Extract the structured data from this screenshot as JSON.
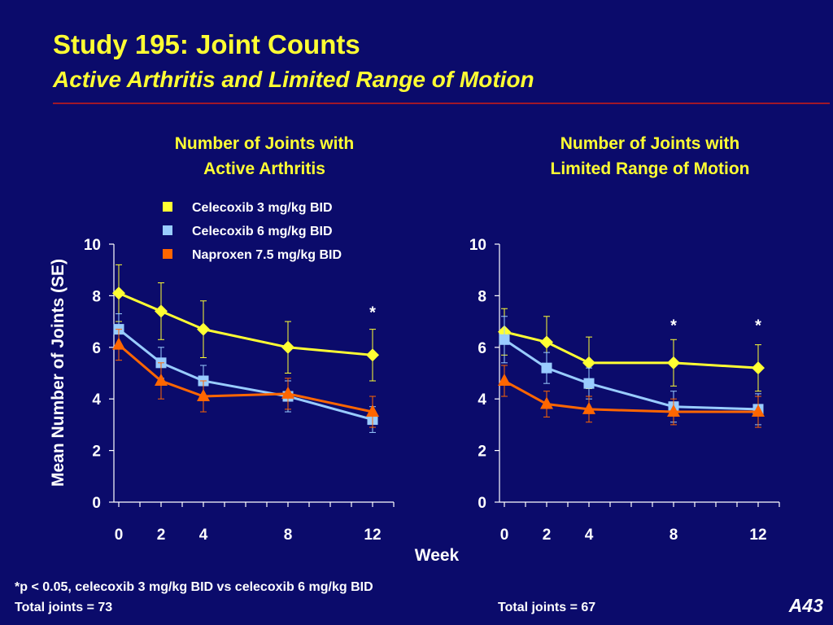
{
  "slide": {
    "title": "Study 195:  Joint Counts",
    "subtitle": "Active Arthritis and Limited Range of Motion",
    "footnote": "*p < 0.05, celecoxib 3 mg/kg BID vs celecoxib 6 mg/kg BID",
    "total_left": "Total joints = 73",
    "total_right": "Total joints = 67",
    "slide_number": "A43"
  },
  "colors": {
    "background": "#0b0b6b",
    "title": "#ffff33",
    "axis": "#ffffff",
    "rule": "#a0182a",
    "celecoxib_3": "#ffff33",
    "celecoxib_6": "#99ccff",
    "naproxen": "#ff6600"
  },
  "chart_data": [
    {
      "type": "line",
      "title": [
        "Number of Joints with",
        "Active Arthritis"
      ],
      "xlabel": "Week",
      "ylabel": "Mean Number of Joints (SE)",
      "x": [
        0,
        2,
        4,
        8,
        12
      ],
      "xlim": [
        0,
        13
      ],
      "ylim": [
        0,
        10
      ],
      "yticks": [
        0,
        2,
        4,
        6,
        8,
        10
      ],
      "legend_position": "top-right",
      "series": [
        {
          "name": "Celecoxib 3 mg/kg BID",
          "marker": "diamond",
          "color": "#ffff33",
          "values": [
            8.1,
            7.4,
            6.7,
            6.0,
            5.7
          ],
          "se": [
            1.1,
            1.1,
            1.1,
            1.0,
            1.0
          ]
        },
        {
          "name": "Celecoxib 6 mg/kg BID",
          "marker": "square",
          "color": "#99ccff",
          "values": [
            6.7,
            5.4,
            4.7,
            4.1,
            3.2
          ],
          "se": [
            0.6,
            0.6,
            0.6,
            0.6,
            0.5
          ]
        },
        {
          "name": "Naproxen 7.5 mg/kg BID",
          "marker": "triangle",
          "color": "#ff6600",
          "values": [
            6.1,
            4.7,
            4.1,
            4.2,
            3.5
          ],
          "se": [
            0.6,
            0.7,
            0.6,
            0.6,
            0.6
          ]
        }
      ],
      "annotations": [
        {
          "x": 12,
          "y": 7.4,
          "text": "*"
        }
      ]
    },
    {
      "type": "line",
      "title": [
        "Number of Joints with",
        "Limited Range of Motion"
      ],
      "xlabel": "Week",
      "ylabel": "",
      "x": [
        0,
        2,
        4,
        8,
        12
      ],
      "xlim": [
        0,
        13
      ],
      "ylim": [
        0,
        10
      ],
      "yticks": [
        0,
        2,
        4,
        6,
        8,
        10
      ],
      "series": [
        {
          "name": "Celecoxib 3 mg/kg BID",
          "marker": "diamond",
          "color": "#ffff33",
          "values": [
            6.6,
            6.2,
            5.4,
            5.4,
            5.2
          ],
          "se": [
            0.9,
            1.0,
            1.0,
            0.9,
            0.9
          ]
        },
        {
          "name": "Celecoxib 6 mg/kg BID",
          "marker": "square",
          "color": "#99ccff",
          "values": [
            6.3,
            5.2,
            4.6,
            3.7,
            3.6
          ],
          "se": [
            0.9,
            0.6,
            0.6,
            0.6,
            0.6
          ]
        },
        {
          "name": "Naproxen 7.5 mg/kg BID",
          "marker": "triangle",
          "color": "#ff6600",
          "values": [
            4.7,
            3.8,
            3.6,
            3.5,
            3.5
          ],
          "se": [
            0.6,
            0.5,
            0.5,
            0.5,
            0.6
          ]
        }
      ],
      "annotations": [
        {
          "x": 8,
          "y": 6.9,
          "text": "*"
        },
        {
          "x": 12,
          "y": 6.9,
          "text": "*"
        }
      ]
    }
  ]
}
